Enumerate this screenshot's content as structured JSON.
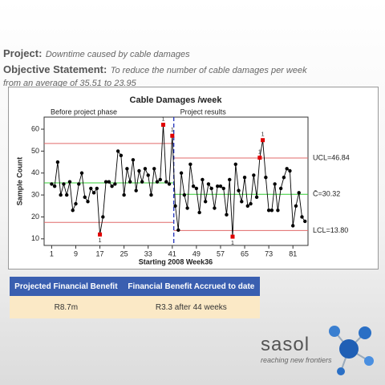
{
  "header": {
    "project_label": "Project:",
    "project_text": "Downtime caused by cable damages",
    "objective_label": "Objective Statement:",
    "objective_text": "To reduce the number of cable damages per week",
    "objective_text2": "from an average of 35.51 to 23.95"
  },
  "chart_data": {
    "type": "line",
    "title": "Cable Damages /week",
    "x_label": "Starting 2008 Week36",
    "y_label": "Sample Count",
    "x": [
      1,
      2,
      3,
      4,
      5,
      6,
      7,
      8,
      9,
      10,
      11,
      12,
      13,
      14,
      15,
      16,
      17,
      18,
      19,
      20,
      21,
      22,
      23,
      24,
      25,
      26,
      27,
      28,
      29,
      30,
      31,
      32,
      33,
      34,
      35,
      36,
      37,
      38,
      39,
      40,
      41,
      42,
      43,
      44,
      45,
      46,
      47,
      48,
      49,
      50,
      51,
      52,
      53,
      54,
      55,
      56,
      57,
      58,
      59,
      60,
      61,
      62,
      63,
      64,
      65,
      66,
      67,
      68,
      69,
      70,
      71,
      72,
      73,
      74,
      75,
      76,
      77,
      78,
      79,
      80,
      81,
      82,
      83,
      84,
      85
    ],
    "values": [
      35,
      34,
      45,
      30,
      35,
      30,
      36,
      23,
      26,
      35,
      40,
      29,
      27,
      33,
      31,
      33,
      12,
      20,
      36,
      36,
      34,
      35,
      50,
      48,
      30,
      42,
      36,
      46,
      32,
      41,
      36,
      42,
      39,
      30,
      42,
      36,
      37,
      62,
      36,
      35,
      57,
      25,
      14,
      40,
      30,
      24,
      44,
      34,
      33,
      22,
      37,
      27,
      35,
      33,
      24,
      34,
      34,
      33,
      21,
      37,
      11,
      44,
      32,
      27,
      38,
      25,
      26,
      39,
      29,
      47,
      55,
      38,
      23,
      23,
      35,
      23,
      33,
      38,
      42,
      41,
      16,
      25,
      31,
      20,
      18
    ],
    "color": "#000000",
    "flag_color": "#e00000",
    "flagged": [
      17,
      38,
      41,
      61,
      70,
      71
    ],
    "flag_label": "1",
    "limits": [
      {
        "name": "Before project phase",
        "start": 1,
        "end": 41,
        "ucl": 53.5,
        "cl": 35.5,
        "lcl": 17.5
      },
      {
        "name": "Project results",
        "start": 42,
        "end": 85,
        "ucl": 46.84,
        "cl": 30.32,
        "lcl": 13.8,
        "ucl_label": "UCL=46.84",
        "cl_label": "C̄=30.32",
        "lcl_label": "LCL=13.80"
      }
    ],
    "limit_color": "#e06a6a",
    "center_color": "#33cc33",
    "split_color": "#2233bb",
    "xlim": [
      -1.5,
      86
    ],
    "xticks": [
      1,
      9,
      17,
      25,
      33,
      41,
      49,
      57,
      65,
      73,
      81
    ],
    "ylim": [
      7,
      65.5
    ],
    "yticks": [
      10,
      20,
      30,
      40,
      50,
      60
    ]
  },
  "table": {
    "headers": [
      "Projected Financial Benefit",
      "Financial Benefit Accrued to date"
    ],
    "rows": [
      [
        "R8.7m",
        "R3.3 after 44 weeks"
      ]
    ]
  },
  "logo": {
    "name": "sasol",
    "tagline": "reaching new frontiers"
  }
}
